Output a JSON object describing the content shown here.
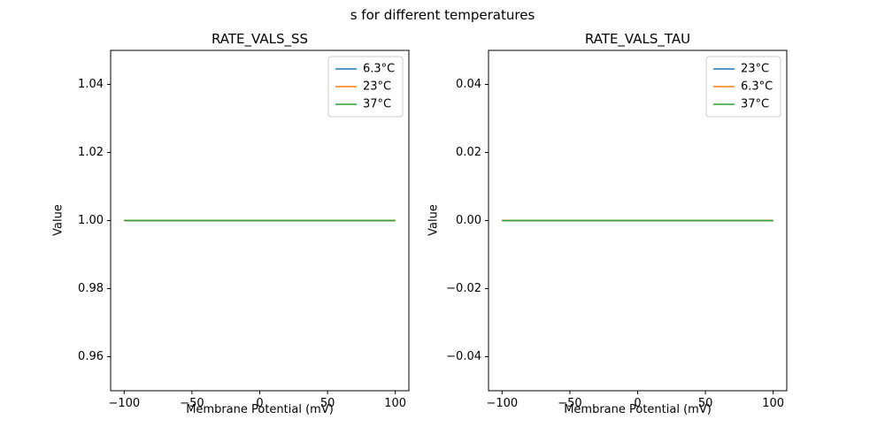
{
  "figure": {
    "suptitle": "s for different temperatures"
  },
  "palette": {
    "blue": "#1f77b4",
    "orange": "#ff7f0e",
    "green": "#2ca02c",
    "legend_edge": "#cccccc",
    "spine": "#000000"
  },
  "chart_data": [
    {
      "type": "line",
      "title": "RATE_VALS_SS",
      "xlabel": "Membrane Potential (mV)",
      "ylabel": "Value",
      "xlim": [
        -110,
        110
      ],
      "ylim": [
        0.95,
        1.05
      ],
      "grid": false,
      "legend_position": "upper right",
      "xticks": [
        -100,
        -50,
        0,
        50,
        100
      ],
      "xtick_labels": [
        "−100",
        "−50",
        "0",
        "50",
        "100"
      ],
      "yticks": [
        0.96,
        0.98,
        1.0,
        1.02,
        1.04
      ],
      "ytick_labels": [
        "0.96",
        "0.98",
        "1.00",
        "1.02",
        "1.04"
      ],
      "series": [
        {
          "name": "6.3°C",
          "color": "#1f77b4",
          "x": [
            -100,
            100
          ],
          "y": [
            1.0,
            1.0
          ]
        },
        {
          "name": "23°C",
          "color": "#ff7f0e",
          "x": [
            -100,
            100
          ],
          "y": [
            1.0,
            1.0
          ]
        },
        {
          "name": "37°C",
          "color": "#2ca02c",
          "x": [
            -100,
            100
          ],
          "y": [
            1.0,
            1.0
          ]
        }
      ]
    },
    {
      "type": "line",
      "title": "RATE_VALS_TAU",
      "xlabel": "Membrane Potential (mV)",
      "ylabel": "Value",
      "xlim": [
        -110,
        110
      ],
      "ylim": [
        -0.05,
        0.05
      ],
      "grid": false,
      "legend_position": "upper right",
      "xticks": [
        -100,
        -50,
        0,
        50,
        100
      ],
      "xtick_labels": [
        "−100",
        "−50",
        "0",
        "50",
        "100"
      ],
      "yticks": [
        -0.04,
        -0.02,
        0.0,
        0.02,
        0.04
      ],
      "ytick_labels": [
        "−0.04",
        "−0.02",
        "0.00",
        "0.02",
        "0.04"
      ],
      "series": [
        {
          "name": "23°C",
          "color": "#1f77b4",
          "x": [
            -100,
            100
          ],
          "y": [
            0.0,
            0.0
          ]
        },
        {
          "name": "6.3°C",
          "color": "#ff7f0e",
          "x": [
            -100,
            100
          ],
          "y": [
            0.0,
            0.0
          ]
        },
        {
          "name": "37°C",
          "color": "#2ca02c",
          "x": [
            -100,
            100
          ],
          "y": [
            0.0,
            0.0
          ]
        }
      ]
    }
  ]
}
